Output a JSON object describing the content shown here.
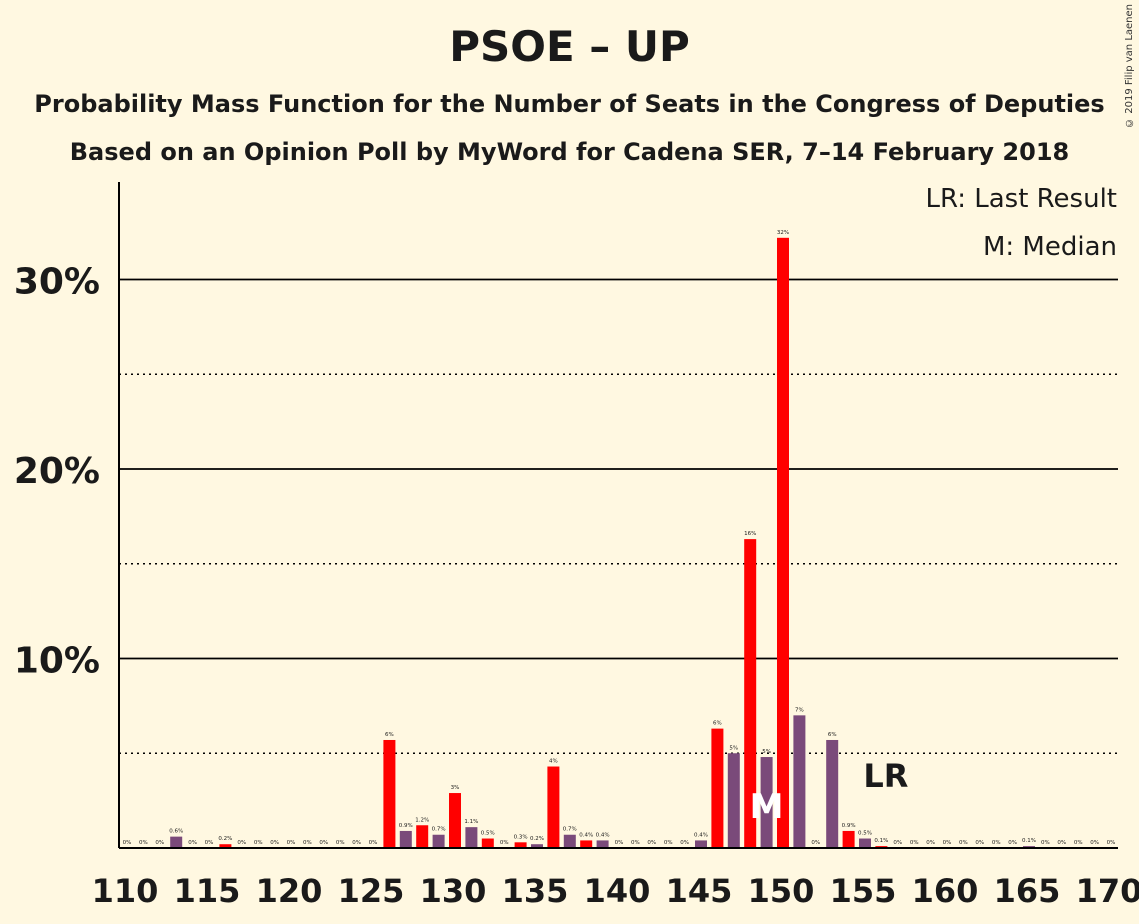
{
  "header": {
    "title": "PSOE – UP",
    "subtitle": "Probability Mass Function for the Number of Seats in the Congress of Deputies",
    "subtitle2": "Based on an Opinion Poll by MyWord for Cadena SER, 7–14 February 2018",
    "copyright": "© 2019 Filip van Laenen"
  },
  "legend": {
    "lr": "LR: Last Result",
    "median": "M: Median"
  },
  "colors": {
    "background": "#FFF8E1",
    "red": "#FF0000",
    "purple": "#7A4A7A",
    "axis": "#000000"
  },
  "chart_data": {
    "type": "bar",
    "title": "PSOE – UP",
    "xlim": [
      110,
      170
    ],
    "ylim": [
      0,
      35
    ],
    "x_ticks": [
      110,
      115,
      120,
      125,
      130,
      135,
      140,
      145,
      150,
      155,
      160,
      165,
      170
    ],
    "y_ticks_major": [
      10,
      20,
      30
    ],
    "y_ticks_minor": [
      5,
      15,
      25
    ],
    "y_tick_labels": [
      "10%",
      "20%",
      "30%"
    ],
    "median_seats": 149,
    "median_label": "M",
    "last_result_seats": 156,
    "last_result_label": "LR",
    "bars": [
      {
        "seats": 110,
        "value": 0,
        "label": "0%",
        "color": "red"
      },
      {
        "seats": 111,
        "value": 0,
        "label": "0%",
        "color": "purple"
      },
      {
        "seats": 112,
        "value": 0,
        "label": "0%",
        "color": "red"
      },
      {
        "seats": 113,
        "value": 0.6,
        "label": "0.6%",
        "color": "purple"
      },
      {
        "seats": 114,
        "value": 0,
        "label": "0%",
        "color": "red"
      },
      {
        "seats": 115,
        "value": 0,
        "label": "0%",
        "color": "purple"
      },
      {
        "seats": 116,
        "value": 0.2,
        "label": "0.2%",
        "color": "red"
      },
      {
        "seats": 117,
        "value": 0,
        "label": "0%",
        "color": "purple"
      },
      {
        "seats": 118,
        "value": 0,
        "label": "0%",
        "color": "red"
      },
      {
        "seats": 119,
        "value": 0,
        "label": "0%",
        "color": "purple"
      },
      {
        "seats": 120,
        "value": 0,
        "label": "0%",
        "color": "red"
      },
      {
        "seats": 121,
        "value": 0,
        "label": "0%",
        "color": "purple"
      },
      {
        "seats": 122,
        "value": 0,
        "label": "0%",
        "color": "red"
      },
      {
        "seats": 123,
        "value": 0,
        "label": "0%",
        "color": "purple"
      },
      {
        "seats": 124,
        "value": 0,
        "label": "0%",
        "color": "red"
      },
      {
        "seats": 125,
        "value": 0,
        "label": "0%",
        "color": "purple"
      },
      {
        "seats": 126,
        "value": 5.7,
        "label": "6%",
        "color": "red"
      },
      {
        "seats": 127,
        "value": 0.9,
        "label": "0.9%",
        "color": "purple"
      },
      {
        "seats": 128,
        "value": 1.2,
        "label": "1.2%",
        "color": "red"
      },
      {
        "seats": 129,
        "value": 0.7,
        "label": "0.7%",
        "color": "purple"
      },
      {
        "seats": 130,
        "value": 2.9,
        "label": "3%",
        "color": "red"
      },
      {
        "seats": 131,
        "value": 1.1,
        "label": "1.1%",
        "color": "purple"
      },
      {
        "seats": 132,
        "value": 0.5,
        "label": "0.5%",
        "color": "red"
      },
      {
        "seats": 133,
        "value": 0,
        "label": "0%",
        "color": "purple"
      },
      {
        "seats": 134,
        "value": 0.3,
        "label": "0.3%",
        "color": "red"
      },
      {
        "seats": 135,
        "value": 0.2,
        "label": "0.2%",
        "color": "purple"
      },
      {
        "seats": 136,
        "value": 4.3,
        "label": "4%",
        "color": "red"
      },
      {
        "seats": 137,
        "value": 0.7,
        "label": "0.7%",
        "color": "purple"
      },
      {
        "seats": 138,
        "value": 0.4,
        "label": "0.4%",
        "color": "red"
      },
      {
        "seats": 139,
        "value": 0.4,
        "label": "0.4%",
        "color": "purple"
      },
      {
        "seats": 140,
        "value": 0,
        "label": "0%",
        "color": "red"
      },
      {
        "seats": 141,
        "value": 0,
        "label": "0%",
        "color": "purple"
      },
      {
        "seats": 142,
        "value": 0,
        "label": "0%",
        "color": "red"
      },
      {
        "seats": 143,
        "value": 0,
        "label": "0%",
        "color": "purple"
      },
      {
        "seats": 144,
        "value": 0,
        "label": "0%",
        "color": "red"
      },
      {
        "seats": 145,
        "value": 0.4,
        "label": "0.4%",
        "color": "purple"
      },
      {
        "seats": 146,
        "value": 6.3,
        "label": "6%",
        "color": "red"
      },
      {
        "seats": 147,
        "value": 5.0,
        "label": "5%",
        "color": "purple"
      },
      {
        "seats": 148,
        "value": 16.3,
        "label": "16%",
        "color": "red"
      },
      {
        "seats": 149,
        "value": 4.8,
        "label": "5%",
        "color": "purple"
      },
      {
        "seats": 150,
        "value": 32.2,
        "label": "32%",
        "color": "red"
      },
      {
        "seats": 151,
        "value": 7.0,
        "label": "7%",
        "color": "purple"
      },
      {
        "seats": 152,
        "value": 0,
        "label": "0%",
        "color": "red"
      },
      {
        "seats": 153,
        "value": 5.7,
        "label": "6%",
        "color": "purple"
      },
      {
        "seats": 154,
        "value": 0.9,
        "label": "0.9%",
        "color": "red"
      },
      {
        "seats": 155,
        "value": 0.5,
        "label": "0.5%",
        "color": "purple"
      },
      {
        "seats": 156,
        "value": 0.1,
        "label": "0.1%",
        "color": "red"
      },
      {
        "seats": 157,
        "value": 0,
        "label": "0%",
        "color": "purple"
      },
      {
        "seats": 158,
        "value": 0,
        "label": "0%",
        "color": "red"
      },
      {
        "seats": 159,
        "value": 0,
        "label": "0%",
        "color": "purple"
      },
      {
        "seats": 160,
        "value": 0,
        "label": "0%",
        "color": "red"
      },
      {
        "seats": 161,
        "value": 0,
        "label": "0%",
        "color": "purple"
      },
      {
        "seats": 162,
        "value": 0,
        "label": "0%",
        "color": "red"
      },
      {
        "seats": 163,
        "value": 0,
        "label": "0%",
        "color": "purple"
      },
      {
        "seats": 164,
        "value": 0,
        "label": "0%",
        "color": "red"
      },
      {
        "seats": 165,
        "value": 0.1,
        "label": "0.1%",
        "color": "purple"
      },
      {
        "seats": 166,
        "value": 0,
        "label": "0%",
        "color": "red"
      },
      {
        "seats": 167,
        "value": 0,
        "label": "0%",
        "color": "purple"
      },
      {
        "seats": 168,
        "value": 0,
        "label": "0%",
        "color": "red"
      },
      {
        "seats": 169,
        "value": 0,
        "label": "0%",
        "color": "purple"
      },
      {
        "seats": 170,
        "value": 0,
        "label": "0%",
        "color": "red"
      }
    ]
  }
}
